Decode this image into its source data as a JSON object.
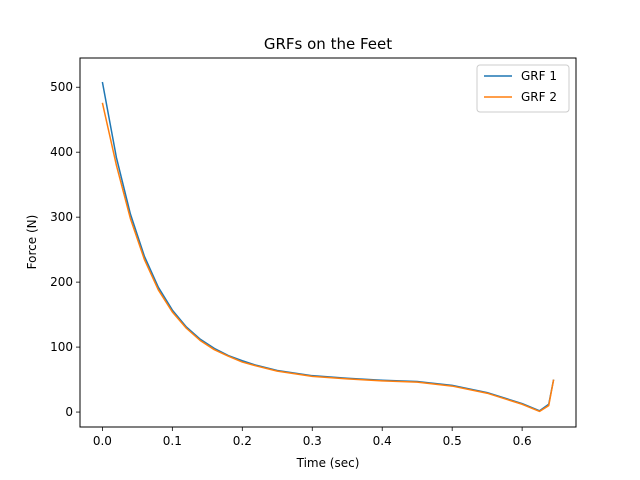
{
  "chart_data": {
    "type": "line",
    "title": "GRFs on the Feet",
    "xlabel": "Time (sec)",
    "ylabel": "Force (N)",
    "xlim": [
      -0.032,
      0.677
    ],
    "ylim": [
      -23,
      545
    ],
    "xticks": [
      0.0,
      0.1,
      0.2,
      0.3,
      0.4,
      0.5,
      0.6
    ],
    "xtick_labels": [
      "0.0",
      "0.1",
      "0.2",
      "0.3",
      "0.4",
      "0.5",
      "0.6"
    ],
    "yticks": [
      0,
      100,
      200,
      300,
      400,
      500
    ],
    "ytick_labels": [
      "0",
      "100",
      "200",
      "300",
      "400",
      "500"
    ],
    "grid": false,
    "legend_position": "top-right",
    "series": [
      {
        "name": "GRF 1",
        "color": "#1f77b4",
        "x": [
          0.0,
          0.02,
          0.04,
          0.06,
          0.08,
          0.1,
          0.12,
          0.14,
          0.16,
          0.18,
          0.2,
          0.22,
          0.25,
          0.3,
          0.35,
          0.4,
          0.45,
          0.5,
          0.55,
          0.6,
          0.625,
          0.638,
          0.645
        ],
        "y": [
          508,
          392,
          305,
          240,
          192,
          157,
          131,
          112,
          98,
          87,
          79,
          72,
          64,
          56,
          52,
          49,
          47,
          41,
          30,
          13,
          2,
          12,
          50
        ]
      },
      {
        "name": "GRF 2",
        "color": "#ff7f0e",
        "x": [
          0.0,
          0.02,
          0.04,
          0.06,
          0.08,
          0.1,
          0.12,
          0.14,
          0.16,
          0.18,
          0.2,
          0.22,
          0.25,
          0.3,
          0.35,
          0.4,
          0.45,
          0.5,
          0.55,
          0.6,
          0.625,
          0.638,
          0.645
        ],
        "y": [
          476,
          380,
          298,
          235,
          188,
          154,
          129,
          110,
          96,
          86,
          77,
          71,
          63,
          55,
          51,
          48,
          46,
          40,
          29,
          12,
          1,
          10,
          50
        ]
      }
    ]
  }
}
